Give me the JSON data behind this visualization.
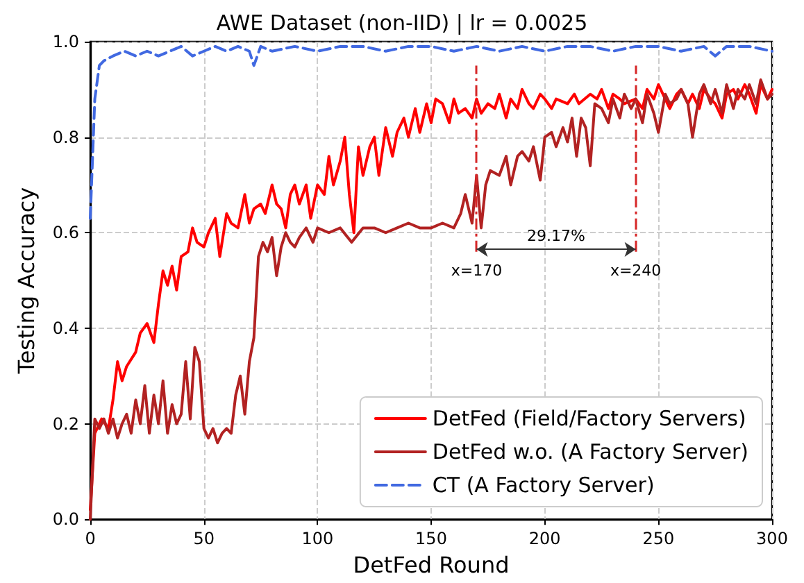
{
  "chart_data": {
    "type": "line",
    "title": "AWE Dataset (non-IID) | lr = 0.0025",
    "xlabel": "DetFed Round",
    "ylabel": "Testing Accuracy",
    "xlim": [
      0,
      300
    ],
    "xticks": [
      0,
      50,
      100,
      150,
      200,
      250,
      300
    ],
    "ylim": [
      0,
      1.0
    ],
    "yticks": [
      {
        "value": 0,
        "label": "0.0"
      },
      {
        "value": 0.2,
        "label": "0.2"
      },
      {
        "value": 0.4,
        "label": "0.4"
      },
      {
        "value": 0.6,
        "label": "0.6"
      },
      {
        "value": 0.8,
        "label": "0.8"
      },
      {
        "value": 1.0,
        "label": "1.0"
      }
    ],
    "grid": true,
    "legend": "bottom right",
    "marker": "none",
    "series": [
      {
        "name": "DetFed (Field/Factory Servers)",
        "color": "#ff0000",
        "line_style": "solid",
        "x": [
          0,
          2,
          5,
          8,
          10,
          12,
          14,
          16,
          20,
          22,
          25,
          28,
          30,
          32,
          34,
          36,
          38,
          40,
          43,
          45,
          47,
          50,
          52,
          55,
          57,
          60,
          62,
          65,
          68,
          70,
          72,
          75,
          77,
          80,
          82,
          84,
          86,
          88,
          90,
          92,
          95,
          97,
          100,
          103,
          105,
          107,
          110,
          112,
          114,
          116,
          118,
          120,
          123,
          125,
          127,
          130,
          133,
          135,
          138,
          140,
          143,
          145,
          148,
          150,
          152,
          155,
          158,
          160,
          162,
          165,
          168,
          170,
          172,
          175,
          178,
          180,
          183,
          185,
          188,
          190,
          193,
          195,
          198,
          200,
          203,
          205,
          210,
          213,
          215,
          220,
          223,
          225,
          228,
          230,
          233,
          235,
          240,
          243,
          245,
          248,
          250,
          253,
          255,
          258,
          260,
          263,
          265,
          268,
          270,
          273,
          275,
          278,
          280,
          283,
          285,
          288,
          290,
          293,
          295,
          298,
          300
        ],
        "values": [
          0.02,
          0.18,
          0.21,
          0.19,
          0.25,
          0.33,
          0.29,
          0.32,
          0.35,
          0.39,
          0.41,
          0.37,
          0.45,
          0.52,
          0.49,
          0.53,
          0.48,
          0.55,
          0.56,
          0.61,
          0.58,
          0.57,
          0.6,
          0.63,
          0.55,
          0.64,
          0.62,
          0.61,
          0.68,
          0.62,
          0.65,
          0.66,
          0.64,
          0.7,
          0.66,
          0.65,
          0.61,
          0.68,
          0.7,
          0.66,
          0.7,
          0.63,
          0.7,
          0.68,
          0.76,
          0.7,
          0.75,
          0.8,
          0.68,
          0.6,
          0.78,
          0.72,
          0.78,
          0.8,
          0.72,
          0.82,
          0.76,
          0.81,
          0.84,
          0.8,
          0.86,
          0.81,
          0.87,
          0.83,
          0.88,
          0.87,
          0.83,
          0.88,
          0.85,
          0.86,
          0.84,
          0.88,
          0.85,
          0.87,
          0.86,
          0.89,
          0.84,
          0.88,
          0.86,
          0.9,
          0.87,
          0.86,
          0.89,
          0.88,
          0.86,
          0.88,
          0.87,
          0.89,
          0.87,
          0.89,
          0.88,
          0.9,
          0.86,
          0.89,
          0.88,
          0.87,
          0.88,
          0.86,
          0.9,
          0.88,
          0.91,
          0.88,
          0.86,
          0.89,
          0.9,
          0.87,
          0.89,
          0.86,
          0.9,
          0.88,
          0.87,
          0.84,
          0.89,
          0.9,
          0.88,
          0.91,
          0.89,
          0.85,
          0.91,
          0.88,
          0.9
        ]
      },
      {
        "name": "DetFed w.o. (A Factory Server)",
        "color": "#b22222",
        "line_style": "solid",
        "x": [
          0,
          2,
          4,
          6,
          8,
          10,
          12,
          14,
          16,
          18,
          20,
          22,
          24,
          26,
          28,
          30,
          32,
          34,
          36,
          38,
          40,
          42,
          44,
          46,
          48,
          50,
          52,
          54,
          56,
          58,
          60,
          62,
          64,
          66,
          68,
          70,
          72,
          74,
          76,
          78,
          80,
          82,
          84,
          86,
          88,
          90,
          92,
          95,
          98,
          100,
          105,
          110,
          115,
          120,
          125,
          130,
          135,
          140,
          145,
          150,
          155,
          160,
          163,
          165,
          168,
          170,
          172,
          174,
          176,
          180,
          183,
          185,
          188,
          190,
          193,
          195,
          198,
          200,
          203,
          205,
          208,
          210,
          212,
          214,
          216,
          218,
          220,
          222,
          225,
          228,
          230,
          233,
          235,
          238,
          240,
          243,
          245,
          248,
          250,
          253,
          255,
          258,
          260,
          263,
          265,
          268,
          270,
          273,
          275,
          278,
          280,
          283,
          285,
          288,
          290,
          293,
          295,
          298,
          300
        ],
        "values": [
          0.0,
          0.21,
          0.19,
          0.21,
          0.18,
          0.21,
          0.17,
          0.2,
          0.22,
          0.18,
          0.25,
          0.2,
          0.28,
          0.18,
          0.26,
          0.2,
          0.29,
          0.18,
          0.24,
          0.2,
          0.22,
          0.33,
          0.21,
          0.36,
          0.33,
          0.19,
          0.17,
          0.19,
          0.16,
          0.18,
          0.19,
          0.18,
          0.26,
          0.3,
          0.22,
          0.33,
          0.38,
          0.55,
          0.58,
          0.56,
          0.59,
          0.51,
          0.57,
          0.6,
          0.58,
          0.57,
          0.59,
          0.61,
          0.58,
          0.61,
          0.6,
          0.61,
          0.58,
          0.61,
          0.61,
          0.6,
          0.61,
          0.62,
          0.61,
          0.61,
          0.62,
          0.61,
          0.64,
          0.68,
          0.62,
          0.72,
          0.61,
          0.7,
          0.73,
          0.72,
          0.76,
          0.7,
          0.76,
          0.77,
          0.75,
          0.78,
          0.71,
          0.8,
          0.81,
          0.78,
          0.82,
          0.79,
          0.84,
          0.76,
          0.84,
          0.82,
          0.74,
          0.87,
          0.86,
          0.83,
          0.88,
          0.84,
          0.89,
          0.86,
          0.88,
          0.83,
          0.89,
          0.85,
          0.81,
          0.89,
          0.87,
          0.88,
          0.9,
          0.87,
          0.8,
          0.89,
          0.91,
          0.87,
          0.9,
          0.85,
          0.91,
          0.86,
          0.9,
          0.88,
          0.91,
          0.87,
          0.92,
          0.88,
          0.89
        ]
      },
      {
        "name": "CT (A Factory Server)",
        "color": "#4169e1",
        "line_style": "dashed",
        "x": [
          0,
          2,
          4,
          6,
          10,
          15,
          20,
          25,
          30,
          35,
          40,
          45,
          50,
          55,
          60,
          65,
          70,
          72,
          75,
          80,
          90,
          100,
          110,
          120,
          130,
          140,
          150,
          160,
          170,
          180,
          190,
          200,
          210,
          220,
          230,
          240,
          250,
          260,
          270,
          275,
          280,
          290,
          300
        ],
        "values": [
          0.63,
          0.88,
          0.95,
          0.96,
          0.97,
          0.98,
          0.97,
          0.98,
          0.97,
          0.98,
          0.99,
          0.97,
          0.98,
          0.99,
          0.98,
          0.99,
          0.98,
          0.95,
          0.99,
          0.98,
          0.99,
          0.98,
          0.99,
          0.99,
          0.98,
          0.99,
          0.99,
          0.98,
          0.99,
          0.98,
          0.99,
          0.98,
          0.99,
          0.99,
          0.98,
          0.99,
          0.99,
          0.98,
          0.99,
          0.97,
          0.99,
          0.99,
          0.98
        ]
      }
    ],
    "ref_lines": [
      {
        "axis": "x",
        "value": 170,
        "label": "x=170",
        "color": "#d62728",
        "line_style": "dashed"
      },
      {
        "axis": "x",
        "value": 240,
        "label": "x=240",
        "color": "#d62728",
        "line_style": "dashed"
      }
    ],
    "annotations": [
      "29.17%"
    ]
  }
}
